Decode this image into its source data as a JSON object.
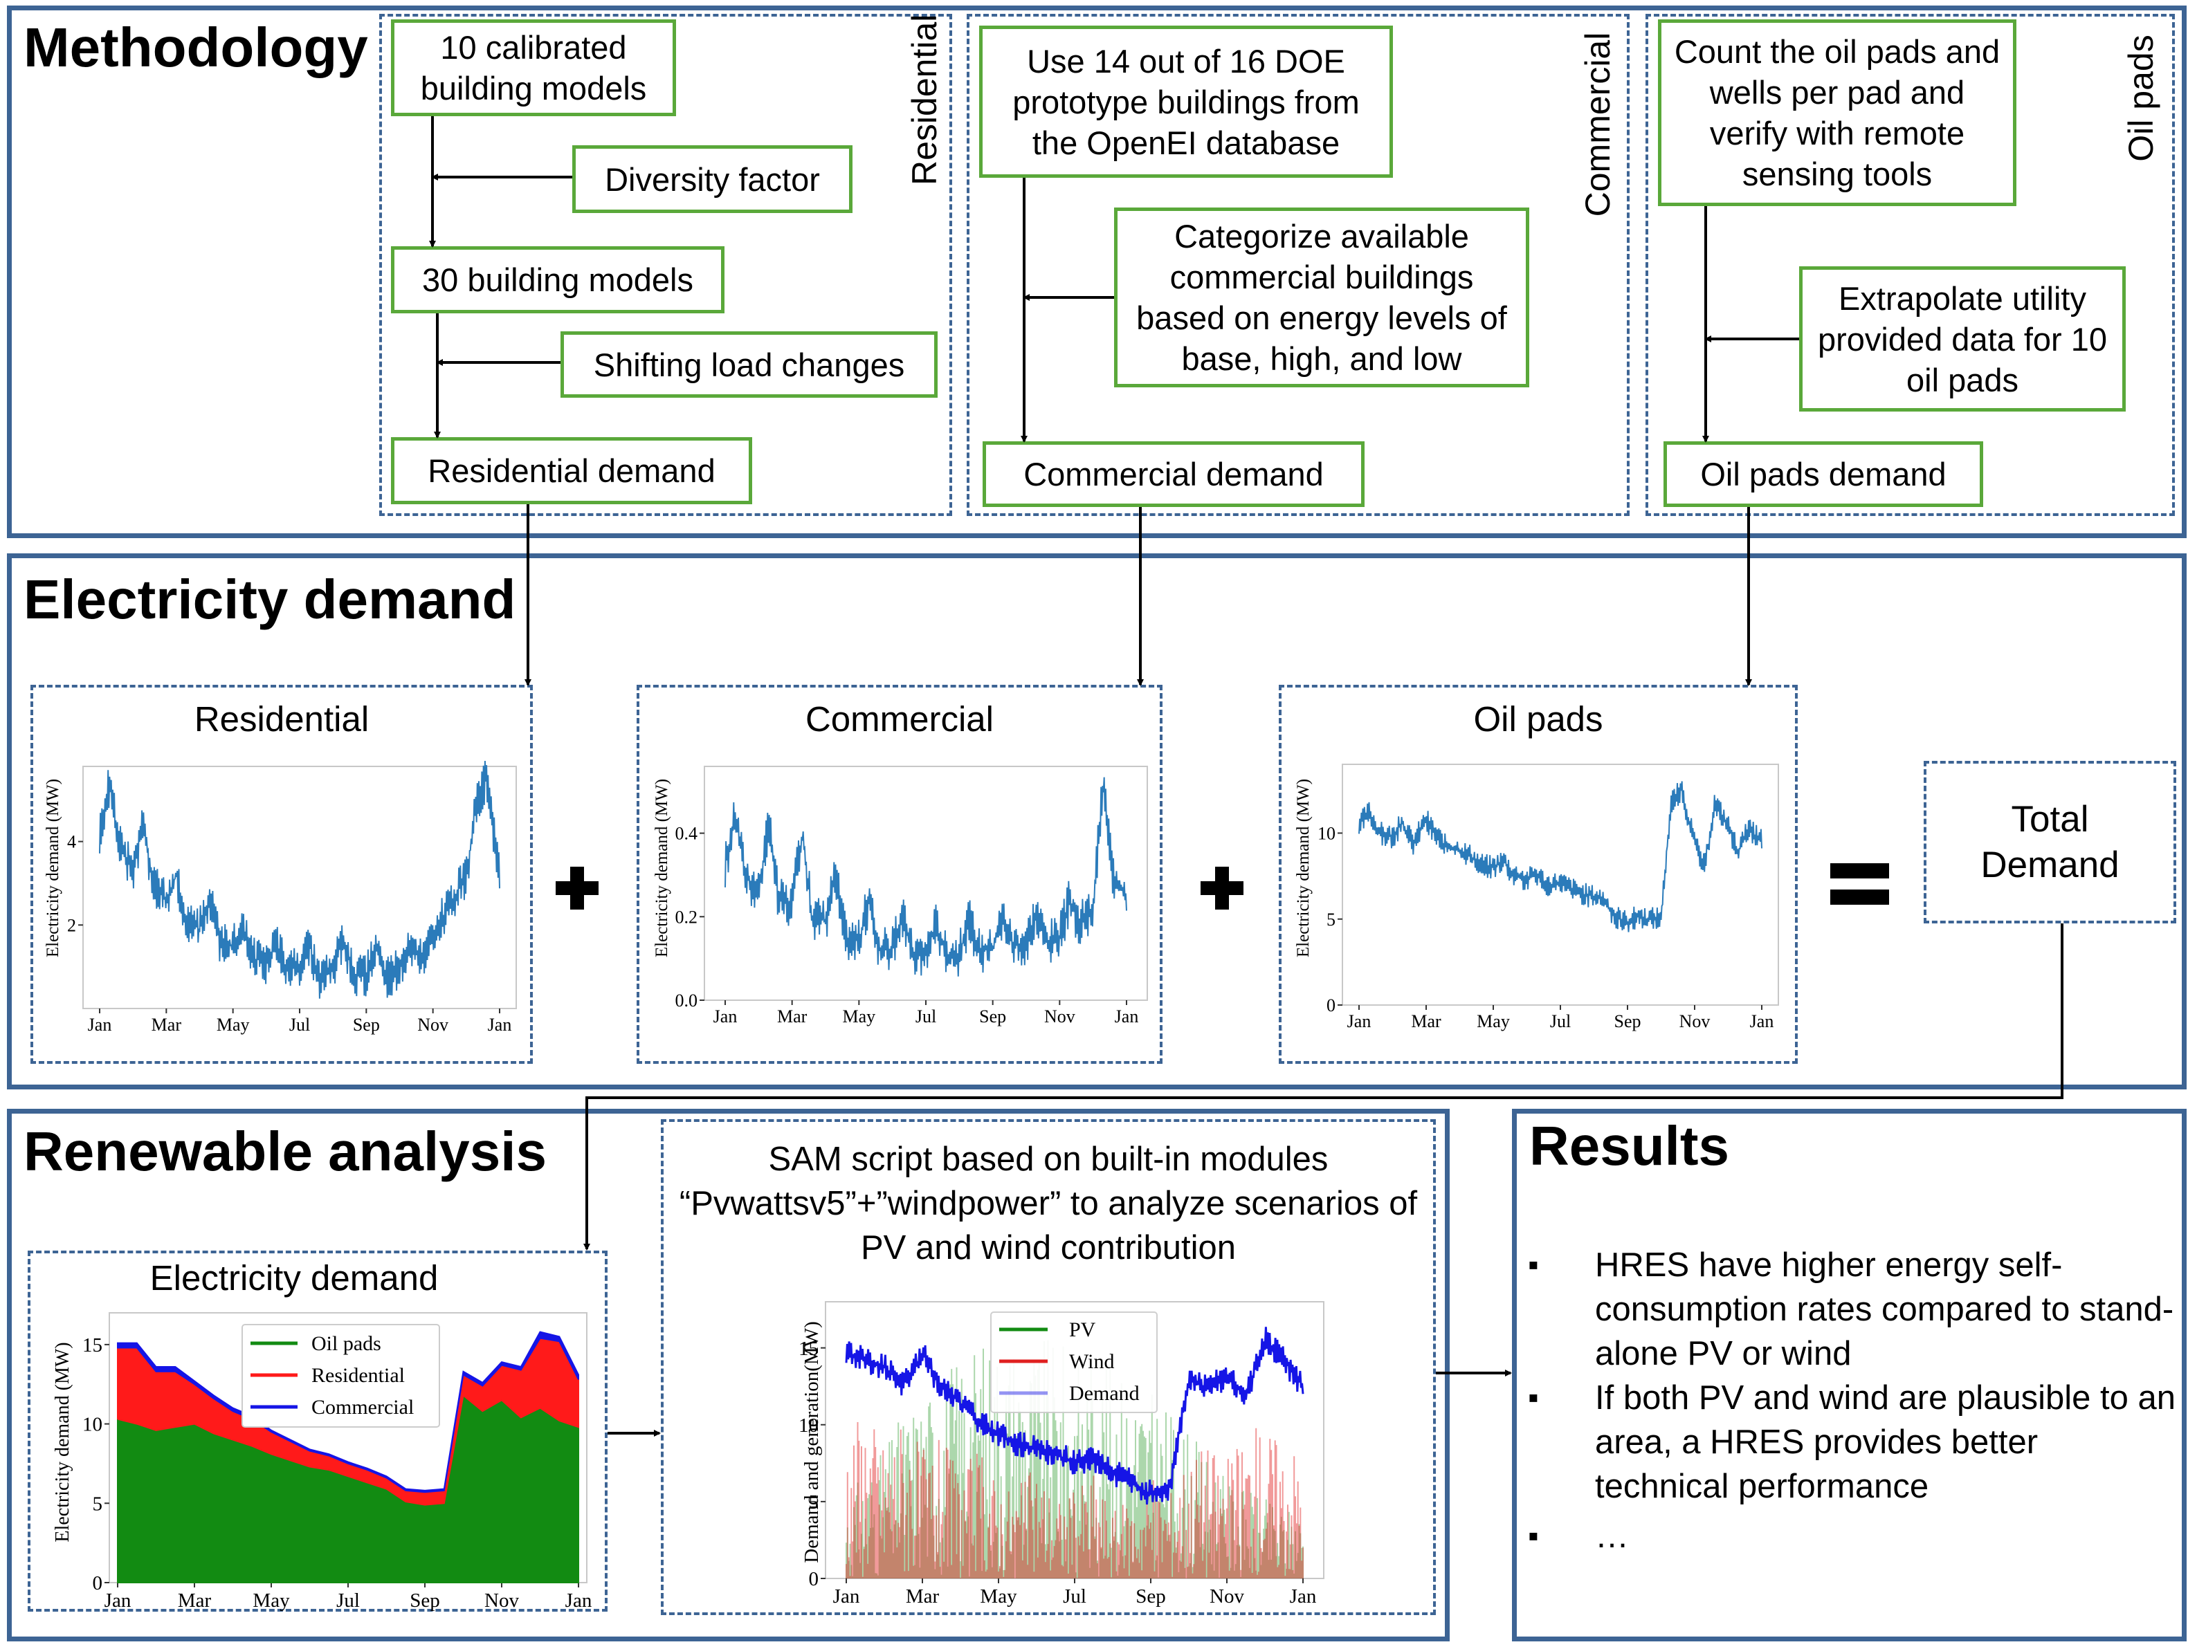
{
  "colors": {
    "panel_border": "#3d6494",
    "box_border": "#5aa83a",
    "series_blue": "#2b7bba",
    "oil_green": "#128b12",
    "residential_red": "#ff1a1a",
    "commercial_blue": "#1515e6"
  },
  "methodology": {
    "title": "Methodology",
    "residential": {
      "label": "Residential",
      "box1": "10 calibrated building models",
      "box2": "Diversity factor",
      "box3": "30 building models",
      "box4": "Shifting load changes",
      "box5": "Residential demand"
    },
    "commercial": {
      "label": "Commercial",
      "box1": "Use 14 out of 16 DOE prototype buildings from the OpenEI database",
      "box2": "Categorize available commercial buildings based on energy levels of base, high, and low",
      "box3": "Commercial demand"
    },
    "oilpads": {
      "label": "Oil pads",
      "box1": "Count the oil pads and wells per pad and verify with remote sensing tools",
      "box2": "Extrapolate utility provided data for 10 oil pads",
      "box3": "Oil pads demand"
    }
  },
  "electricity_demand": {
    "title": "Electricity demand",
    "plus_icon": "plus-icon",
    "equals_icon": "equals-icon",
    "total_demand": "Total Demand"
  },
  "renewable": {
    "title": "Renewable analysis",
    "sam_text": "SAM script based on built-in modules “Pvwattsv5”+”windpower” to analyze scenarios of PV and wind contribution"
  },
  "results": {
    "title": "Results",
    "items": [
      "HRES have higher energy self-consumption rates compared to stand-alone PV or wind",
      "If both PV and wind are plausible to an area, a HRES provides better technical performance",
      "…"
    ]
  },
  "chart_data": [
    {
      "id": "residential",
      "type": "line",
      "title": "Residential",
      "ylabel": "Electricity demand (MW)",
      "xlabel": "",
      "x_ticks": [
        "Jan",
        "Mar",
        "May",
        "Jul",
        "Sep",
        "Nov",
        "Jan"
      ],
      "y_ticks": [
        2,
        4
      ],
      "ylim": [
        0,
        5.8
      ],
      "series": [
        {
          "color": "#2b7bba",
          "x": [
            0,
            0.3,
            0.6,
            1,
            1.3,
            1.6,
            2,
            2.3,
            2.6,
            3,
            3.3,
            3.6,
            4,
            4.3,
            4.6,
            5,
            5.3,
            5.6,
            6,
            6.3,
            6.6,
            7,
            7.3,
            7.6,
            8,
            8.3,
            8.6,
            9,
            9.3,
            9.6,
            10,
            10.3,
            10.6,
            11,
            11.3,
            11.6,
            12
          ],
          "values": [
            4.2,
            5.4,
            3.9,
            3.3,
            4.4,
            3.0,
            2.6,
            3.2,
            2.1,
            1.9,
            2.7,
            1.6,
            1.5,
            2.0,
            1.2,
            1.1,
            1.6,
            0.9,
            1.0,
            1.5,
            0.7,
            0.9,
            1.7,
            0.8,
            0.8,
            1.4,
            0.7,
            1.0,
            1.5,
            1.2,
            1.6,
            2.2,
            2.6,
            3.2,
            4.9,
            5.5,
            3.2
          ]
        }
      ]
    },
    {
      "id": "commercial",
      "type": "line",
      "title": "Commercial",
      "ylabel": "Electricity demand (MW)",
      "xlabel": "",
      "x_ticks": [
        "Jan",
        "Mar",
        "May",
        "Jul",
        "Sep",
        "Nov",
        "Jan"
      ],
      "y_ticks": [
        0.0,
        0.2,
        0.4
      ],
      "ylim": [
        0,
        0.56
      ],
      "series": [
        {
          "color": "#2b7bba",
          "x": [
            0,
            0.3,
            0.6,
            1,
            1.3,
            1.6,
            2,
            2.3,
            2.6,
            3,
            3.3,
            3.6,
            4,
            4.3,
            4.6,
            5,
            5.3,
            5.6,
            6,
            6.3,
            6.6,
            7,
            7.3,
            7.6,
            8,
            8.3,
            8.6,
            9,
            9.3,
            9.6,
            10,
            10.3,
            10.6,
            11,
            11.3,
            11.6,
            12
          ],
          "values": [
            0.32,
            0.44,
            0.3,
            0.26,
            0.42,
            0.24,
            0.23,
            0.4,
            0.2,
            0.19,
            0.3,
            0.15,
            0.14,
            0.24,
            0.12,
            0.12,
            0.2,
            0.11,
            0.11,
            0.18,
            0.11,
            0.11,
            0.19,
            0.12,
            0.12,
            0.2,
            0.13,
            0.14,
            0.21,
            0.14,
            0.15,
            0.24,
            0.18,
            0.22,
            0.52,
            0.3,
            0.25
          ]
        }
      ]
    },
    {
      "id": "oilpads",
      "type": "line",
      "title": "Oil pads",
      "ylabel": "Electricity demand (MW)",
      "xlabel": "",
      "x_ticks": [
        "Jan",
        "Mar",
        "May",
        "Jul",
        "Sep",
        "Nov",
        "Jan"
      ],
      "y_ticks": [
        0,
        5,
        10
      ],
      "ylim": [
        0,
        14
      ],
      "series": [
        {
          "color": "#2b7bba",
          "x": [
            0,
            0.3,
            0.6,
            1,
            1.3,
            1.6,
            2,
            2.3,
            2.6,
            3,
            3.3,
            3.6,
            4,
            4.3,
            4.6,
            5,
            5.3,
            5.6,
            6,
            6.3,
            6.6,
            7,
            7.3,
            7.6,
            8,
            8.3,
            8.6,
            9,
            9.3,
            9.6,
            10,
            10.3,
            10.6,
            11,
            11.3,
            11.6,
            12
          ],
          "values": [
            10.5,
            11.2,
            10.0,
            9.8,
            10.6,
            9.4,
            10.8,
            9.9,
            9.2,
            9.0,
            8.7,
            8.2,
            8.0,
            8.4,
            7.6,
            7.3,
            7.6,
            7.0,
            7.1,
            6.8,
            6.5,
            6.3,
            6.1,
            5.2,
            4.8,
            5.2,
            5.0,
            5.1,
            11.8,
            12.5,
            9.4,
            8.0,
            11.8,
            10.4,
            8.9,
            10.2,
            9.6
          ]
        }
      ]
    },
    {
      "id": "stacked",
      "type": "area",
      "title": "Electricity demand",
      "ylabel": "Electricity demand (MW)",
      "xlabel": "",
      "x_ticks": [
        "Jan",
        "Mar",
        "May",
        "Jul",
        "Sep",
        "Nov",
        "Jan"
      ],
      "y_ticks": [
        0,
        5,
        10,
        15
      ],
      "ylim": [
        0,
        17
      ],
      "legend": "upper-left",
      "x": [
        0,
        0.5,
        1,
        1.5,
        2,
        2.5,
        3,
        3.5,
        4,
        4.5,
        5,
        5.5,
        6,
        6.5,
        7,
        7.5,
        8,
        8.5,
        9,
        9.5,
        10,
        10.5,
        11,
        11.5,
        12
      ],
      "series": [
        {
          "name": "Oil pads",
          "color": "#128b12",
          "values": [
            10.3,
            10.0,
            9.6,
            9.8,
            10.0,
            9.4,
            9.0,
            8.6,
            8.1,
            7.7,
            7.3,
            7.1,
            6.7,
            6.3,
            5.9,
            5.1,
            4.9,
            5.0,
            11.8,
            10.8,
            11.5,
            10.4,
            11.0,
            10.2,
            9.8
          ]
        },
        {
          "name": "Residential",
          "color": "#ff1a1a",
          "values": [
            4.5,
            4.8,
            3.7,
            3.5,
            2.5,
            2.2,
            1.8,
            1.7,
            1.4,
            1.2,
            1.0,
            0.9,
            0.8,
            0.8,
            0.7,
            0.7,
            0.8,
            0.8,
            1.3,
            1.6,
            2.2,
            3.0,
            4.4,
            5.0,
            3.0
          ]
        },
        {
          "name": "Commercial",
          "color": "#1515e6",
          "values": [
            0.3,
            0.3,
            0.3,
            0.3,
            0.2,
            0.2,
            0.2,
            0.2,
            0.1,
            0.1,
            0.1,
            0.1,
            0.1,
            0.1,
            0.1,
            0.1,
            0.1,
            0.1,
            0.2,
            0.2,
            0.2,
            0.2,
            0.4,
            0.3,
            0.3
          ]
        }
      ]
    },
    {
      "id": "generation",
      "type": "line",
      "title": "",
      "ylabel": "Demand and generation(MW)",
      "xlabel": "",
      "x_ticks": [
        "Jan",
        "Mar",
        "May",
        "Jul",
        "Sep",
        "Nov",
        "Jan"
      ],
      "y_ticks": [
        0,
        5,
        10,
        15
      ],
      "ylim": [
        0,
        18
      ],
      "legend": "upper-center",
      "x": [
        0,
        0.5,
        1,
        1.5,
        2,
        2.5,
        3,
        3.5,
        4,
        4.5,
        5,
        5.5,
        6,
        6.5,
        7,
        7.5,
        8,
        8.5,
        9,
        9.5,
        10,
        10.5,
        11,
        11.5,
        12
      ],
      "series": [
        {
          "name": "PV",
          "color": "#128b12",
          "values": [
            4.0,
            5.5,
            6.5,
            8.5,
            9.5,
            10.5,
            11.5,
            12.0,
            12.5,
            12.5,
            12.0,
            12.0,
            11.5,
            11.5,
            11.0,
            10.5,
            9.5,
            8.5,
            7.5,
            6.0,
            5.0,
            4.5,
            4.0,
            3.5,
            3.5
          ]
        },
        {
          "name": "Wind",
          "color": "#e02020",
          "values": [
            7.5,
            9.0,
            7.0,
            8.5,
            6.5,
            7.0,
            5.5,
            6.5,
            5.0,
            4.5,
            6.0,
            4.0,
            4.5,
            5.5,
            3.5,
            4.0,
            5.0,
            4.5,
            6.5,
            7.0,
            6.0,
            7.5,
            8.0,
            7.0,
            6.5
          ]
        },
        {
          "name": "Demand",
          "color": "#1515e6",
          "values": [
            14.8,
            14.2,
            13.8,
            12.6,
            14.6,
            12.4,
            11.4,
            10.2,
            9.3,
            8.8,
            8.4,
            8.0,
            7.6,
            7.8,
            7.0,
            6.2,
            5.5,
            6.0,
            13.0,
            12.4,
            13.2,
            11.8,
            15.6,
            14.2,
            12.5
          ]
        }
      ]
    }
  ]
}
